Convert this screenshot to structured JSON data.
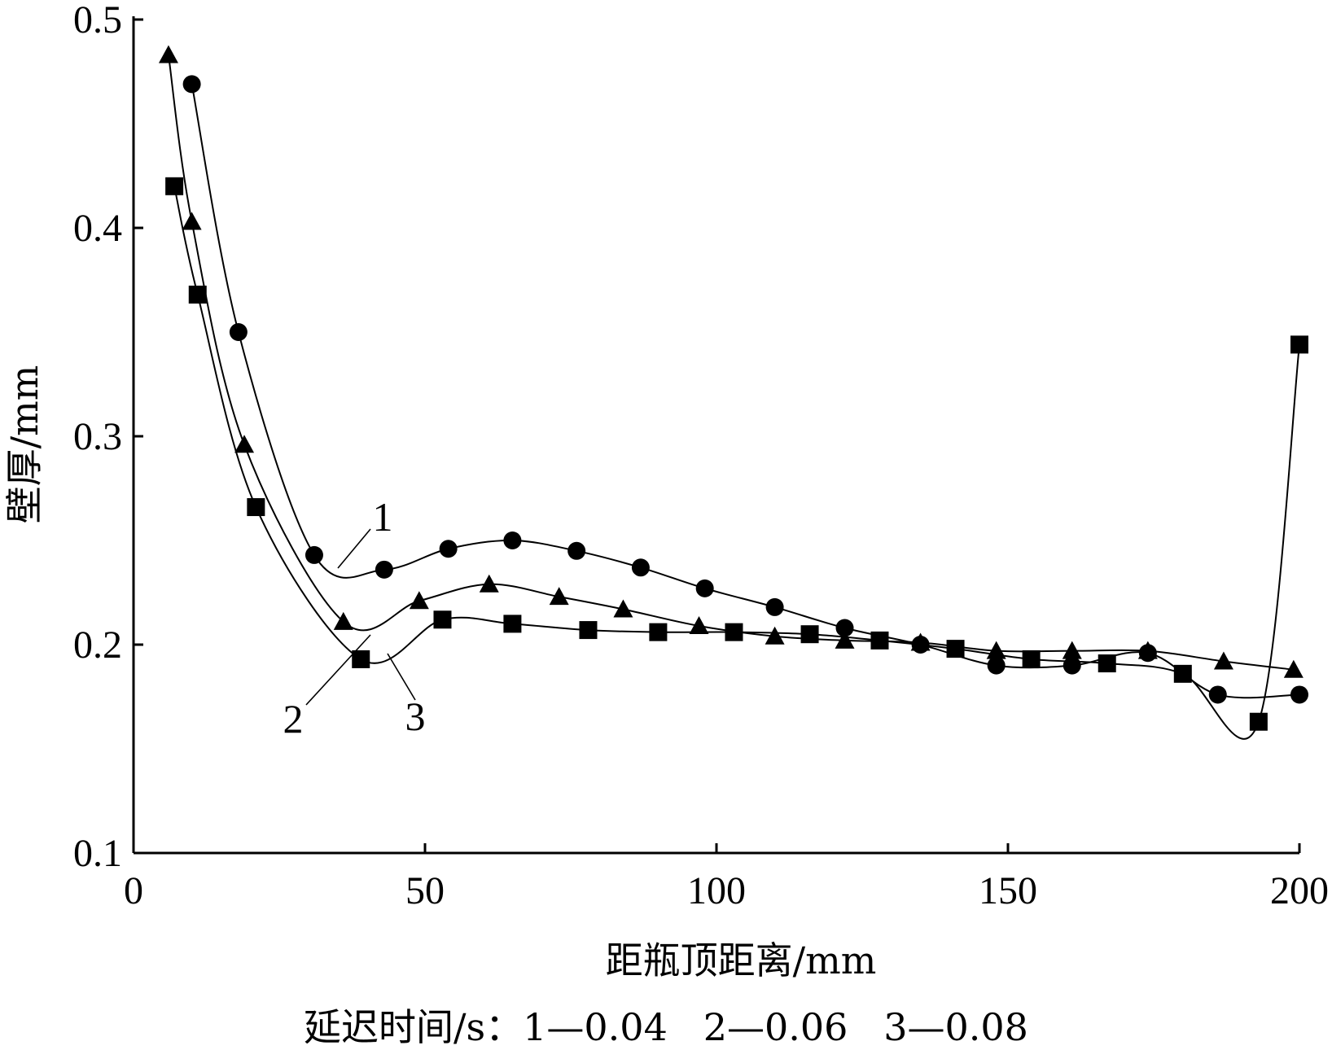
{
  "chart_data": {
    "type": "line",
    "xlabel": "距瓶顶距离/mm",
    "ylabel": "壁厚/mm",
    "xlim": [
      0,
      200
    ],
    "ylim": [
      0.1,
      0.5
    ],
    "xticks": [
      "0",
      "50",
      "100",
      "150",
      "200"
    ],
    "yticks": [
      "0.1",
      "0.2",
      "0.3",
      "0.4",
      "0.5"
    ],
    "caption": "延迟时间/s：1—0.04   2—0.06   3—0.08",
    "grid": false,
    "series": [
      {
        "name": "1",
        "marker": "circle",
        "x": [
          10,
          18,
          31,
          43,
          54,
          65,
          76,
          87,
          98,
          110,
          122,
          135,
          148,
          161,
          174,
          186,
          200
        ],
        "y": [
          0.469,
          0.35,
          0.243,
          0.236,
          0.246,
          0.25,
          0.245,
          0.237,
          0.227,
          0.218,
          0.208,
          0.2,
          0.19,
          0.19,
          0.196,
          0.176,
          0.176
        ]
      },
      {
        "name": "2",
        "marker": "triangle",
        "x": [
          6,
          10,
          19,
          36,
          49,
          61,
          73,
          84,
          97,
          110,
          122,
          135,
          148,
          161,
          174,
          187,
          199
        ],
        "y": [
          0.483,
          0.403,
          0.296,
          0.211,
          0.221,
          0.229,
          0.223,
          0.217,
          0.209,
          0.204,
          0.202,
          0.201,
          0.197,
          0.197,
          0.197,
          0.192,
          0.188
        ]
      },
      {
        "name": "3",
        "marker": "square",
        "x": [
          7,
          11,
          21,
          39,
          53,
          65,
          78,
          90,
          103,
          116,
          128,
          141,
          154,
          167,
          180,
          193,
          200
        ],
        "y": [
          0.42,
          0.368,
          0.266,
          0.193,
          0.212,
          0.21,
          0.207,
          0.206,
          0.206,
          0.205,
          0.202,
          0.198,
          0.193,
          0.191,
          0.186,
          0.163,
          0.344
        ]
      }
    ]
  }
}
